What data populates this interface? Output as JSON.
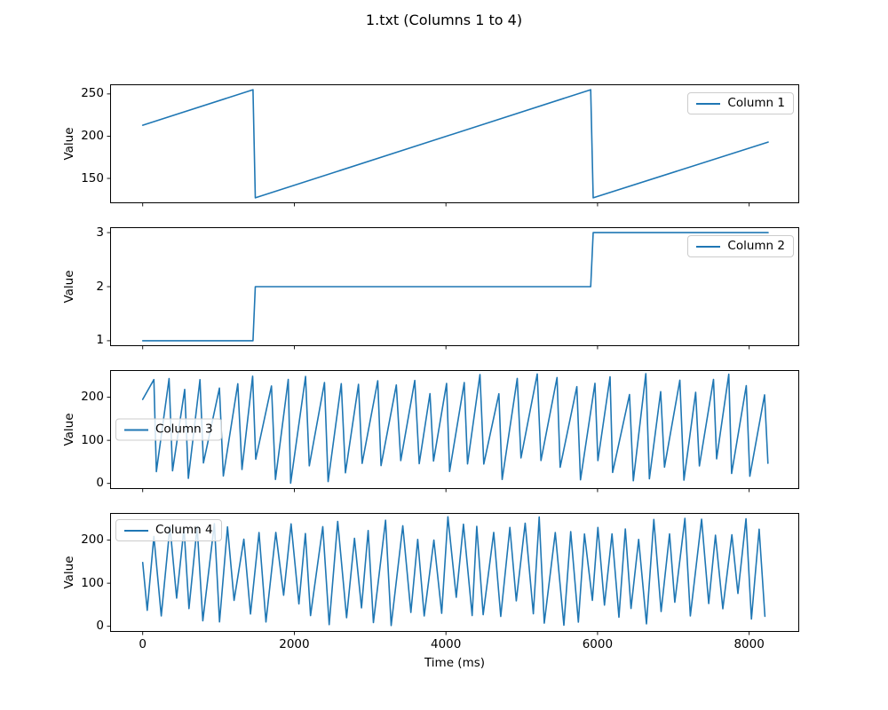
{
  "figure": {
    "title": "1.txt (Columns 1 to 4)",
    "background": "#ffffff",
    "line_color": "#1f77b4",
    "axis_color": "#000000"
  },
  "xaxis": {
    "label": "Time (ms)",
    "ticks": [
      0,
      2000,
      4000,
      6000,
      8000
    ],
    "lim": [
      -430,
      8660
    ]
  },
  "chart_data": [
    {
      "type": "line",
      "name": "Column 1",
      "ylabel": "Value",
      "legend_loc": "upper-right",
      "yticks": [
        150,
        200,
        250
      ],
      "ylim": [
        120.6,
        261.4
      ],
      "points": [
        [
          0,
          213
        ],
        [
          1455,
          255
        ],
        [
          1485,
          127
        ],
        [
          5910,
          255
        ],
        [
          5942,
          127
        ],
        [
          8250,
          193
        ]
      ]
    },
    {
      "type": "line",
      "name": "Column 2",
      "ylabel": "Value",
      "legend_loc": "upper-right",
      "yticks": [
        1,
        2,
        3
      ],
      "ylim": [
        0.9,
        3.1
      ],
      "points": [
        [
          0,
          1
        ],
        [
          1455,
          1
        ],
        [
          1485,
          2
        ],
        [
          5910,
          2
        ],
        [
          5942,
          3
        ],
        [
          8250,
          3
        ]
      ]
    },
    {
      "type": "line",
      "name": "Column 3",
      "ylabel": "Value",
      "legend_loc": "center-left",
      "yticks": [
        0,
        100,
        200
      ],
      "ylim": [
        -13,
        263
      ],
      "waveform": {
        "kind": "sawtooth",
        "period_ms": 230,
        "rise_fraction": 0.8,
        "peak_range": [
          205,
          255
        ],
        "trough_range": [
          0,
          60
        ],
        "end_ms": 8250,
        "seed": 3,
        "head_points": [
          [
            0,
            195
          ]
        ]
      }
    },
    {
      "type": "line",
      "name": "Column 4",
      "ylabel": "Value",
      "legend_loc": "upper-left",
      "yticks": [
        0,
        100,
        200
      ],
      "ylim": [
        -13,
        263
      ],
      "waveform": {
        "kind": "triangle",
        "period_ms": 200,
        "rise_fraction": 0.55,
        "peak_range": [
          200,
          255
        ],
        "trough_range": [
          0,
          80
        ],
        "end_ms": 8250,
        "seed": 8,
        "head_points": [
          [
            0,
            148
          ],
          [
            60,
            37
          ]
        ]
      }
    }
  ]
}
